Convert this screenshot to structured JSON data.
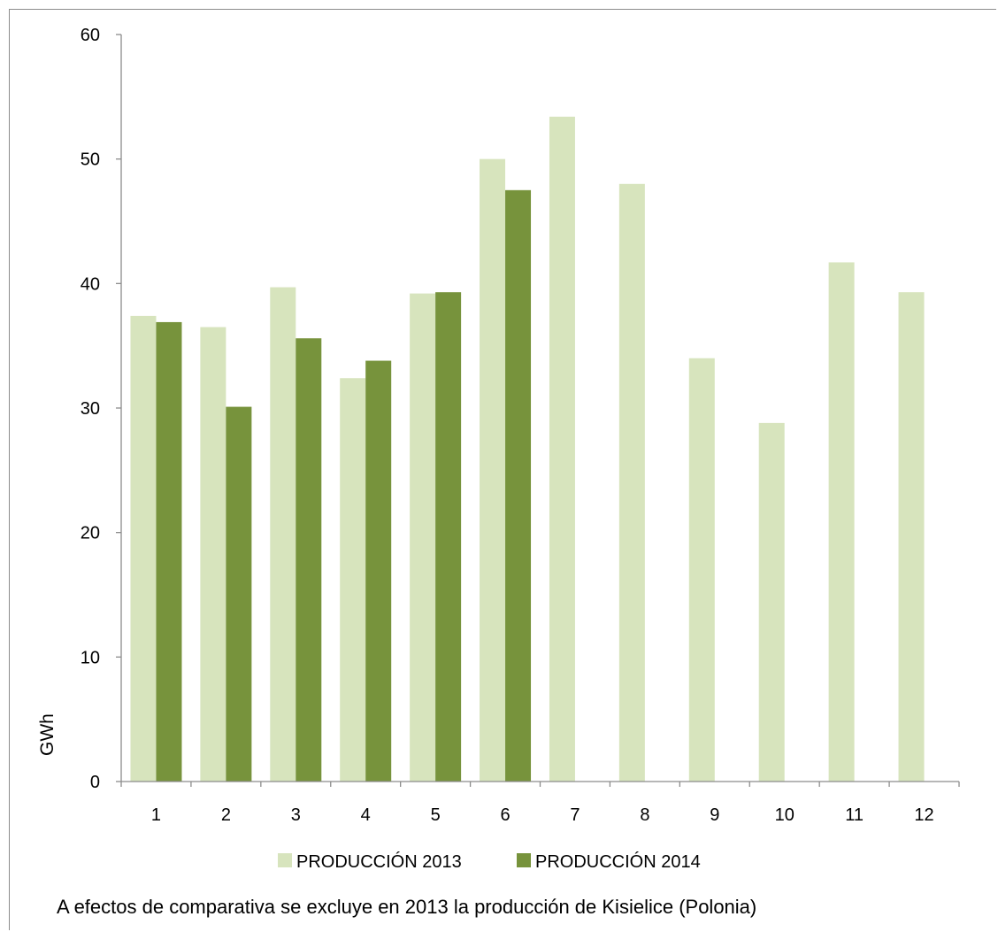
{
  "chart_data": {
    "type": "bar",
    "categories": [
      "1",
      "2",
      "3",
      "4",
      "5",
      "6",
      "7",
      "8",
      "9",
      "10",
      "11",
      "12"
    ],
    "series": [
      {
        "name": "PRODUCCIÓN 2013",
        "color": "#d7e4bd",
        "values": [
          37.4,
          36.5,
          39.7,
          32.4,
          39.2,
          50.0,
          53.4,
          48.0,
          34.0,
          28.8,
          41.7,
          39.3
        ]
      },
      {
        "name": "PRODUCCIÓN 2014",
        "color": "#77933c",
        "values": [
          36.9,
          30.1,
          35.6,
          33.8,
          39.3,
          47.5,
          null,
          null,
          null,
          null,
          null,
          null
        ]
      }
    ],
    "ylabel": "GWh",
    "ylim": [
      0,
      60
    ],
    "yticks": [
      0,
      10,
      20,
      30,
      40,
      50,
      60
    ],
    "grid": false,
    "legend": "bottom"
  },
  "footnote": "A efectos de comparativa se excluye en 2013 la producción de Kisielice (Polonia)"
}
